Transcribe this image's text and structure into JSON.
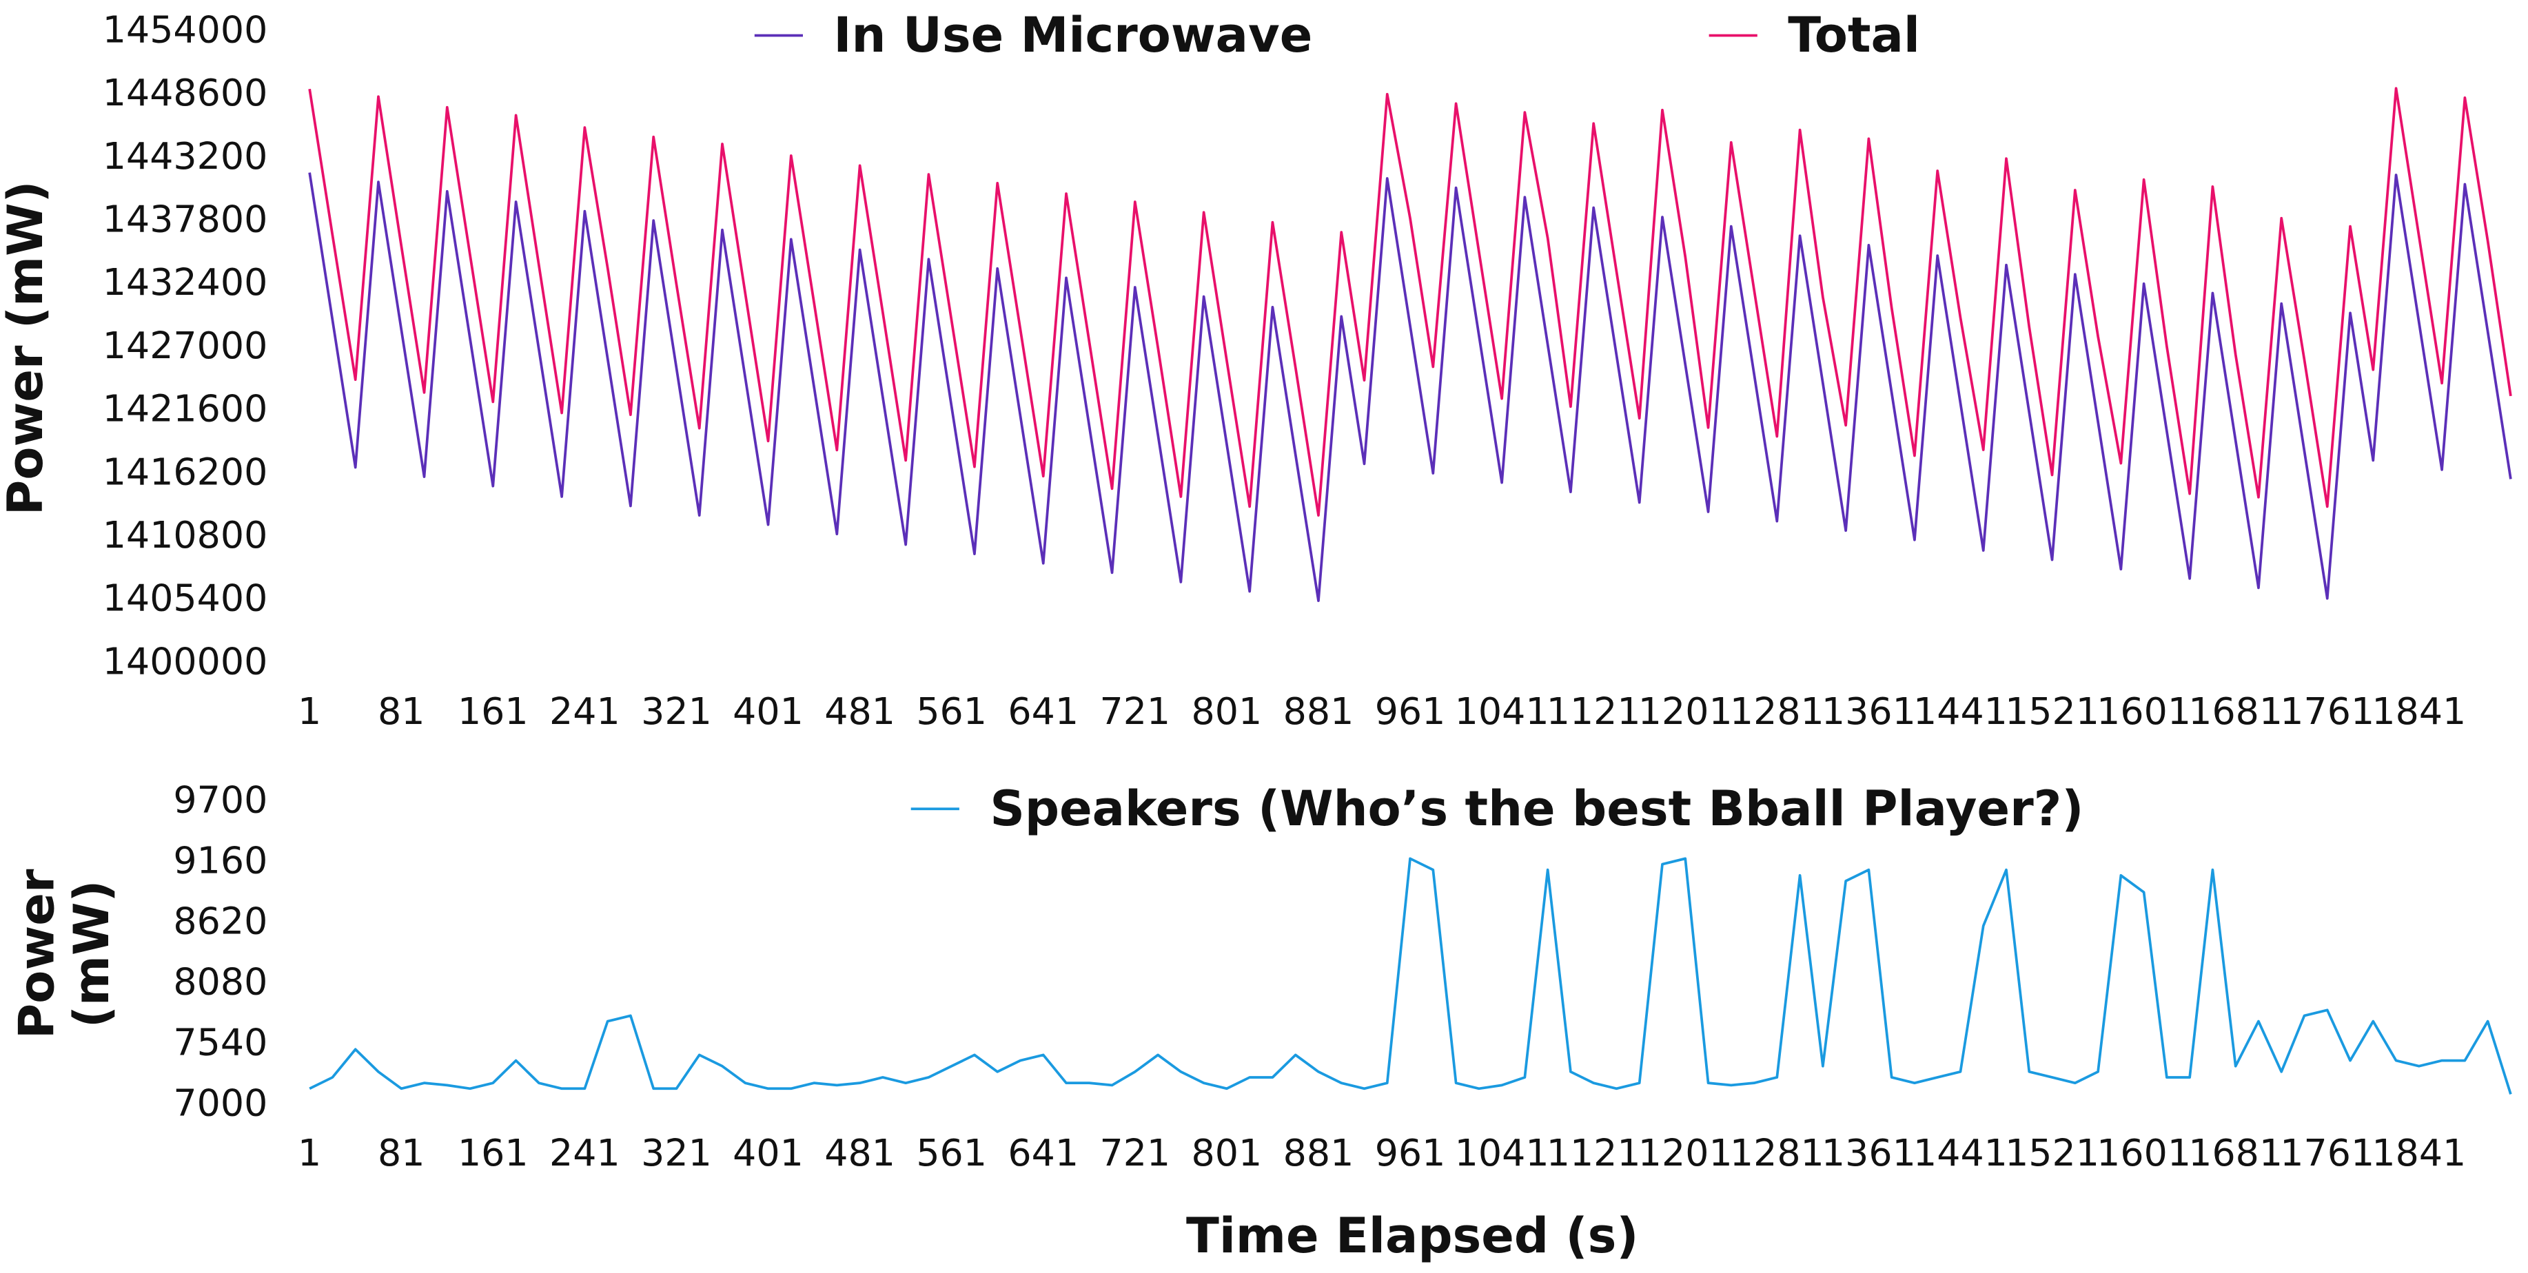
{
  "chart_data": [
    {
      "type": "line",
      "ylabel": "Power (mW)",
      "xlim": [
        1,
        1922
      ],
      "ylim": [
        1400000,
        1454000
      ],
      "xticks": [
        1,
        81,
        161,
        241,
        321,
        401,
        481,
        561,
        641,
        721,
        801,
        881,
        961,
        1041,
        1121,
        1201,
        1281,
        1361,
        1441,
        1521,
        1601,
        1681,
        1761,
        1841
      ],
      "yticks": [
        1400000,
        1405400,
        1410800,
        1416200,
        1421600,
        1427000,
        1432400,
        1437800,
        1443200,
        1448600,
        1454000
      ],
      "legend": "top",
      "x": [
        1,
        21,
        41,
        61,
        81,
        101,
        121,
        141,
        161,
        181,
        201,
        221,
        241,
        261,
        281,
        301,
        321,
        341,
        361,
        381,
        401,
        421,
        441,
        461,
        481,
        501,
        521,
        541,
        561,
        581,
        601,
        621,
        641,
        661,
        681,
        701,
        721,
        741,
        761,
        781,
        801,
        821,
        841,
        861,
        881,
        901,
        921,
        941,
        961,
        981,
        1001,
        1021,
        1041,
        1061,
        1081,
        1101,
        1121,
        1141,
        1161,
        1181,
        1201,
        1221,
        1241,
        1261,
        1281,
        1301,
        1321,
        1341,
        1361,
        1381,
        1401,
        1421,
        1441,
        1461,
        1481,
        1501,
        1521,
        1541,
        1561,
        1581,
        1601,
        1621,
        1641,
        1661,
        1681,
        1701,
        1721,
        1741,
        1761,
        1781,
        1801,
        1821,
        1841,
        1861,
        1881,
        1901,
        1921
      ],
      "series": [
        {
          "name": "In Use Microwave",
          "color": "#5b2fb8",
          "values": [
            1442000,
            1429400,
            1416800,
            1441200,
            1428600,
            1416000,
            1440400,
            1427800,
            1415200,
            1439500,
            1426900,
            1414300,
            1438700,
            1426100,
            1413500,
            1437900,
            1425300,
            1412700,
            1437100,
            1424500,
            1411900,
            1436300,
            1423700,
            1411100,
            1435400,
            1422800,
            1410200,
            1434600,
            1422000,
            1409400,
            1433800,
            1421200,
            1408600,
            1433000,
            1420400,
            1407800,
            1432200,
            1419600,
            1407000,
            1431400,
            1418800,
            1406200,
            1430500,
            1417900,
            1405400,
            1429700,
            1417100,
            1441500,
            1428900,
            1416300,
            1440700,
            1428100,
            1415500,
            1439900,
            1427300,
            1414700,
            1439000,
            1426400,
            1413800,
            1438200,
            1425600,
            1413000,
            1437400,
            1424800,
            1412200,
            1436600,
            1424000,
            1411400,
            1435800,
            1423200,
            1410600,
            1434900,
            1422300,
            1409700,
            1434100,
            1421500,
            1408900,
            1433300,
            1420700,
            1408100,
            1432500,
            1419900,
            1407300,
            1431700,
            1419100,
            1406500,
            1430800,
            1418200,
            1405600,
            1430000,
            1417400,
            1441800,
            1429200,
            1416600,
            1441000,
            1428400,
            1415800
          ]
        },
        {
          "name": "Total",
          "color": "#e8106a",
          "values": [
            1449150,
            1436650,
            1424300,
            1448500,
            1435750,
            1423200,
            1447580,
            1434950,
            1422400,
            1446900,
            1434100,
            1421450,
            1445850,
            1433850,
            1421300,
            1445050,
            1432450,
            1420150,
            1444450,
            1431700,
            1419050,
            1443450,
            1430900,
            1418280,
            1442600,
            1430050,
            1417400,
            1441850,
            1429350,
            1416850,
            1441100,
            1428600,
            1416050,
            1440200,
            1427600,
            1414980,
            1439500,
            1427050,
            1414300,
            1438600,
            1425950,
            1413450,
            1437750,
            1425350,
            1412700,
            1436900,
            1424250,
            1448700,
            1438100,
            1425400,
            1447900,
            1435250,
            1422680,
            1447150,
            1436400,
            1422000,
            1446200,
            1433550,
            1421000,
            1447350,
            1434800,
            1420200,
            1444580,
            1432000,
            1419450,
            1445650,
            1431350,
            1420400,
            1444900,
            1430450,
            1417800,
            1442150,
            1429600,
            1418300,
            1443200,
            1428800,
            1416150,
            1440500,
            1428000,
            1417150,
            1441400,
            1427150,
            1414550,
            1440800,
            1426450,
            1414250,
            1438100,
            1426000,
            1413450,
            1437400,
            1425150,
            1449200,
            1436550,
            1424000,
            1448400,
            1436150,
            1422900
          ]
        }
      ]
    },
    {
      "type": "line",
      "ylabel": "Power (mW)",
      "xlabel": "Time Elapsed (s)",
      "xlim": [
        1,
        1922
      ],
      "ylim": [
        7000,
        9700
      ],
      "xticks": [
        1,
        81,
        161,
        241,
        321,
        401,
        481,
        561,
        641,
        721,
        801,
        881,
        961,
        1041,
        1121,
        1201,
        1281,
        1361,
        1441,
        1521,
        1601,
        1681,
        1761,
        1841
      ],
      "yticks": [
        7000,
        7540,
        8080,
        8620,
        9160,
        9700
      ],
      "legend": "top",
      "x": [
        1,
        21,
        41,
        61,
        81,
        101,
        121,
        141,
        161,
        181,
        201,
        221,
        241,
        261,
        281,
        301,
        321,
        341,
        361,
        381,
        401,
        421,
        441,
        461,
        481,
        501,
        521,
        541,
        561,
        581,
        601,
        621,
        641,
        661,
        681,
        701,
        721,
        741,
        761,
        781,
        801,
        821,
        841,
        861,
        881,
        901,
        921,
        941,
        961,
        981,
        1001,
        1021,
        1041,
        1061,
        1081,
        1101,
        1121,
        1141,
        1161,
        1181,
        1201,
        1221,
        1241,
        1261,
        1281,
        1301,
        1321,
        1341,
        1361,
        1381,
        1401,
        1421,
        1441,
        1461,
        1481,
        1501,
        1521,
        1541,
        1561,
        1581,
        1601,
        1621,
        1641,
        1661,
        1681,
        1701,
        1721,
        1741,
        1761,
        1781,
        1801,
        1821,
        1841,
        1861,
        1881,
        1901,
        1921
      ],
      "series": [
        {
          "name": "Speakers (Who’s the best Bball Player?)",
          "color": "#1a9ae0",
          "values": [
            7150,
            7250,
            7500,
            7300,
            7150,
            7200,
            7180,
            7150,
            7200,
            7400,
            7200,
            7150,
            7150,
            7750,
            7800,
            7150,
            7150,
            7450,
            7350,
            7200,
            7150,
            7150,
            7200,
            7180,
            7200,
            7250,
            7200,
            7250,
            7350,
            7450,
            7300,
            7400,
            7450,
            7200,
            7200,
            7180,
            7300,
            7450,
            7300,
            7200,
            7150,
            7250,
            7250,
            7450,
            7300,
            7200,
            7150,
            7200,
            9200,
            9100,
            7200,
            7150,
            7180,
            7250,
            9100,
            7300,
            7200,
            7150,
            7200,
            9150,
            9200,
            7200,
            7180,
            7200,
            7250,
            9050,
            7350,
            9000,
            9100,
            7250,
            7200,
            7250,
            7300,
            8600,
            9100,
            7300,
            7250,
            7200,
            7300,
            9050,
            8900,
            7250,
            7250,
            9100,
            7350,
            7750,
            7300,
            7800,
            7850,
            7400,
            7750,
            7400,
            7350,
            7400,
            7400,
            7750,
            7100
          ]
        }
      ]
    }
  ]
}
